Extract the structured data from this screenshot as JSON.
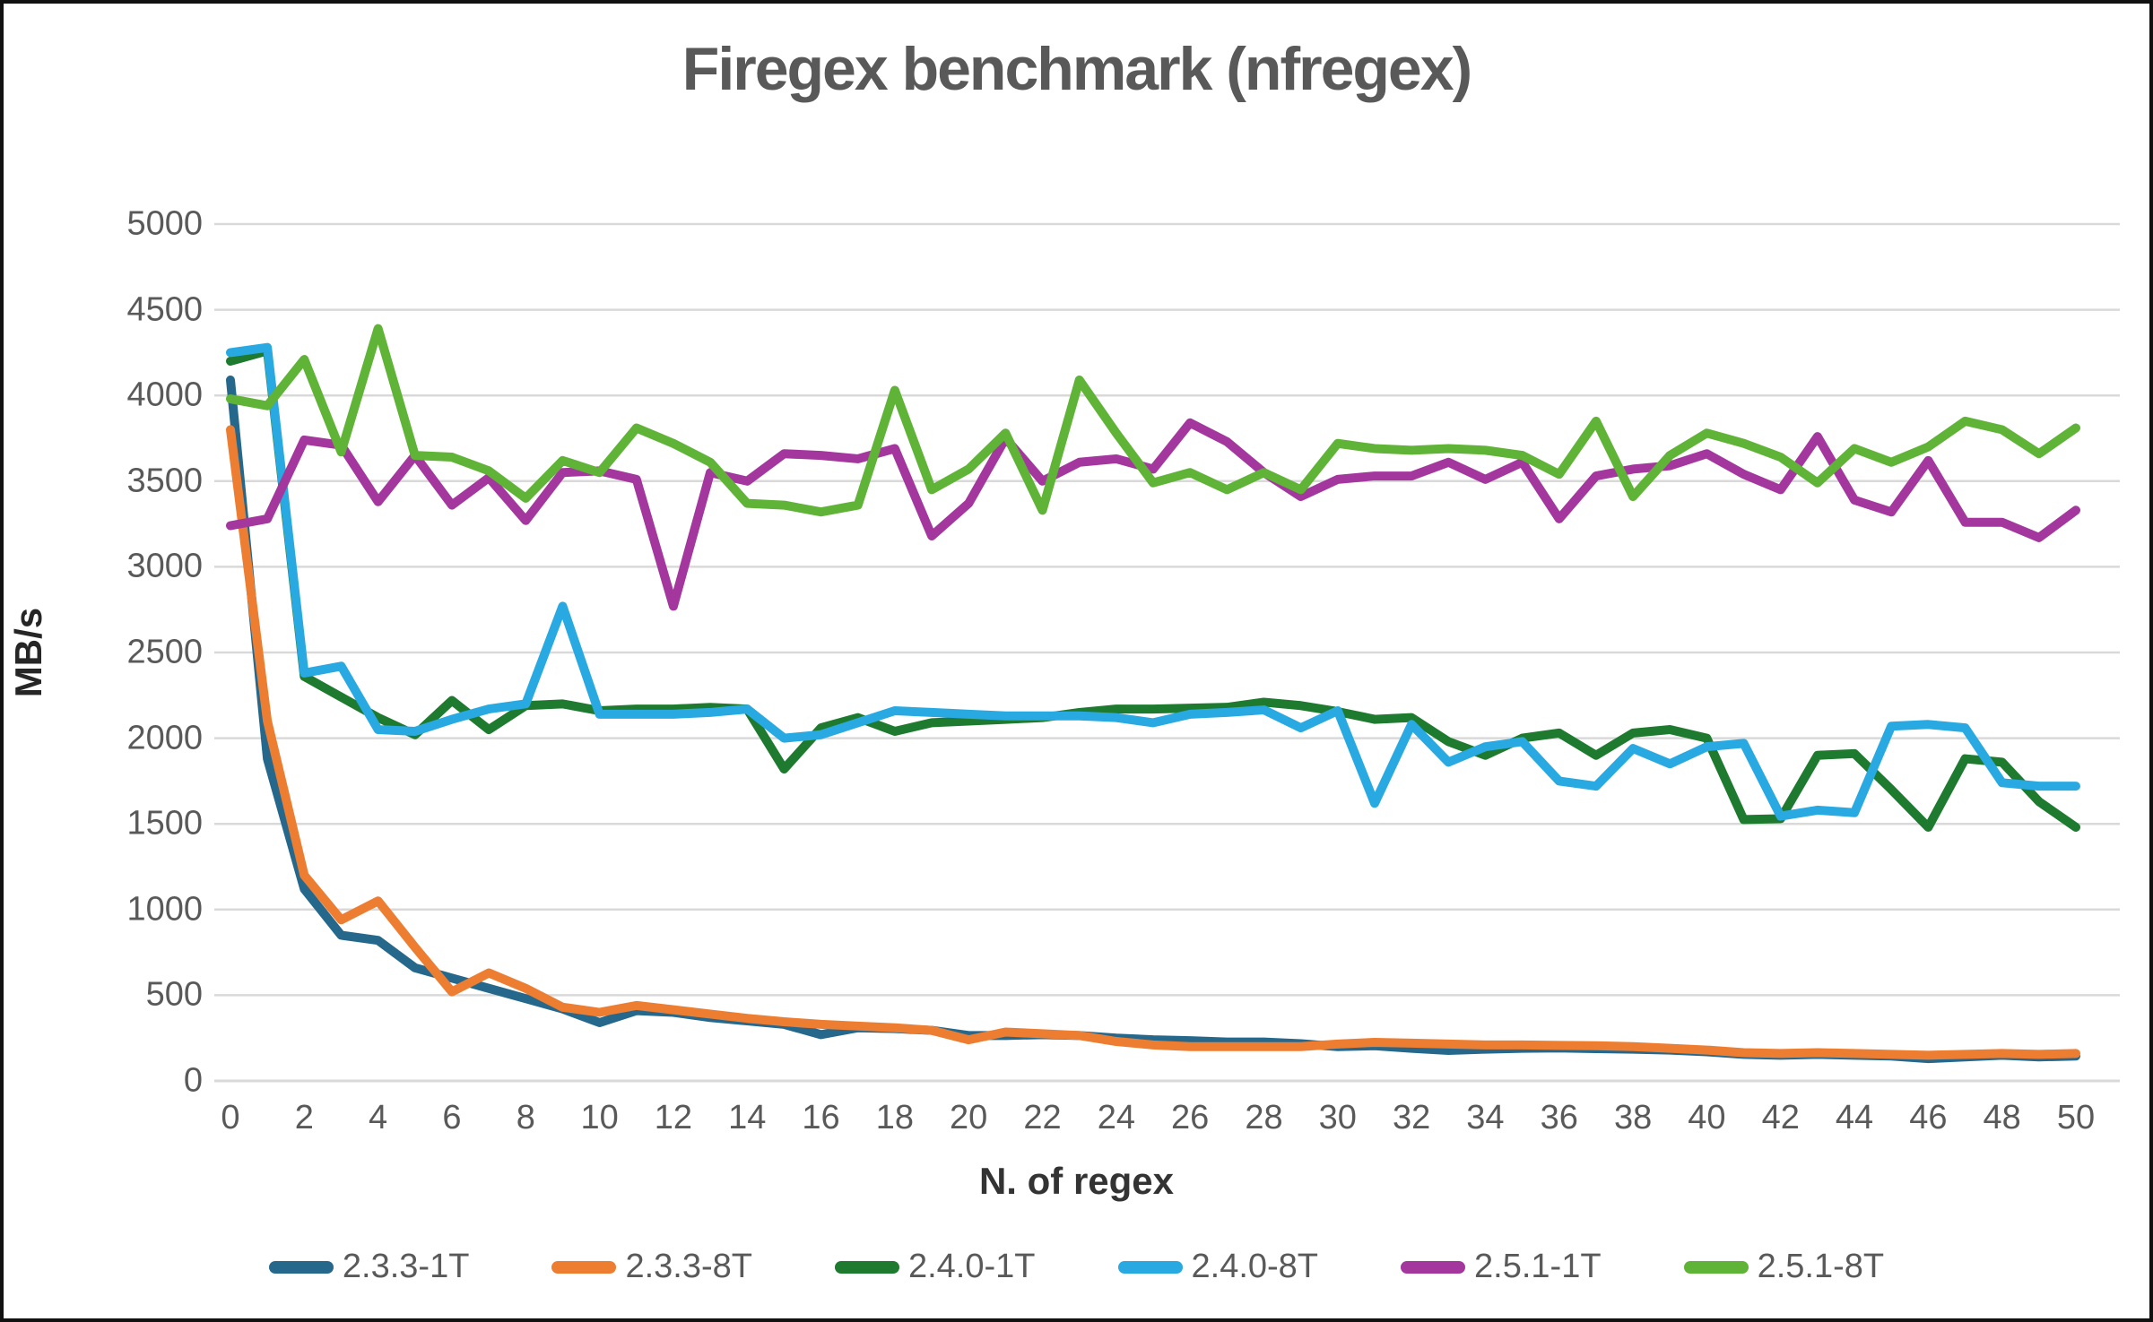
{
  "chart_data": {
    "type": "line",
    "title": "Firegex benchmark (nfregex)",
    "xlabel": "N. of regex",
    "ylabel": "MB/s",
    "ylim": [
      0,
      5000
    ],
    "y_ticks": [
      0,
      500,
      1000,
      1500,
      2000,
      2500,
      3000,
      3500,
      4000,
      4500,
      5000
    ],
    "x_ticks": [
      0,
      2,
      4,
      6,
      8,
      10,
      12,
      14,
      16,
      18,
      20,
      22,
      24,
      26,
      28,
      30,
      32,
      34,
      36,
      38,
      40,
      42,
      44,
      46,
      48,
      50
    ],
    "x_min": 0,
    "x_max": 50,
    "grid": true,
    "legend_position": "bottom",
    "gridline_color": "#d9d9d9",
    "series": [
      {
        "name": "2.3.3-1T",
        "color": "#26688C",
        "values": [
          4090,
          1880,
          1120,
          850,
          820,
          660,
          600,
          540,
          480,
          420,
          340,
          410,
          400,
          370,
          350,
          330,
          270,
          310,
          305,
          295,
          265,
          265,
          270,
          265,
          250,
          240,
          235,
          227,
          227,
          217,
          200,
          205,
          190,
          178,
          185,
          190,
          192,
          188,
          185,
          180,
          170,
          155,
          150,
          155,
          150,
          145,
          130,
          140,
          150,
          140,
          145
        ]
      },
      {
        "name": "2.3.3-8T",
        "color": "#ED7D31",
        "values": [
          3800,
          2100,
          1200,
          940,
          1050,
          780,
          520,
          630,
          540,
          430,
          400,
          440,
          415,
          390,
          365,
          345,
          330,
          320,
          310,
          295,
          240,
          285,
          275,
          265,
          230,
          210,
          200,
          200,
          200,
          200,
          215,
          225,
          220,
          215,
          210,
          210,
          207,
          205,
          200,
          190,
          180,
          165,
          160,
          165,
          160,
          155,
          150,
          155,
          160,
          155,
          160
        ]
      },
      {
        "name": "2.4.0-1T",
        "color": "#1E7A2E",
        "values": [
          4200,
          4260,
          2360,
          2240,
          2120,
          2020,
          2220,
          2050,
          2190,
          2200,
          2160,
          2170,
          2170,
          2180,
          2170,
          1820,
          2060,
          2120,
          2040,
          2090,
          2100,
          2110,
          2120,
          2150,
          2170,
          2170,
          2175,
          2180,
          2210,
          2190,
          2155,
          2110,
          2120,
          1980,
          1900,
          2000,
          2030,
          1900,
          2030,
          2050,
          2000,
          1525,
          1530,
          1900,
          1910,
          1700,
          1480,
          1880,
          1860,
          1630,
          1480
        ]
      },
      {
        "name": "2.4.0-8T",
        "color": "#29A9E1",
        "values": [
          4250,
          4280,
          2380,
          2420,
          2050,
          2040,
          2110,
          2170,
          2200,
          2770,
          2140,
          2140,
          2140,
          2150,
          2170,
          2000,
          2020,
          2090,
          2160,
          2150,
          2140,
          2130,
          2130,
          2130,
          2120,
          2090,
          2140,
          2150,
          2165,
          2060,
          2160,
          1620,
          2080,
          1860,
          1950,
          1980,
          1750,
          1720,
          1940,
          1850,
          1950,
          1970,
          1545,
          1580,
          1565,
          2070,
          2080,
          2060,
          1740,
          1720,
          1720
        ]
      },
      {
        "name": "2.5.1-1T",
        "color": "#A3379E",
        "values": [
          3240,
          3280,
          3740,
          3710,
          3380,
          3650,
          3360,
          3520,
          3270,
          3550,
          3560,
          3510,
          2770,
          3550,
          3500,
          3660,
          3650,
          3630,
          3690,
          3180,
          3370,
          3750,
          3500,
          3610,
          3630,
          3570,
          3840,
          3730,
          3550,
          3410,
          3510,
          3530,
          3530,
          3610,
          3510,
          3610,
          3280,
          3530,
          3570,
          3590,
          3660,
          3540,
          3450,
          3760,
          3390,
          3320,
          3620,
          3260,
          3260,
          3170,
          3330
        ]
      },
      {
        "name": "2.5.1-8T",
        "color": "#5FB336",
        "values": [
          3980,
          3940,
          4210,
          3670,
          4390,
          3650,
          3640,
          3560,
          3400,
          3620,
          3550,
          3810,
          3720,
          3610,
          3370,
          3360,
          3320,
          3360,
          4030,
          3450,
          3570,
          3780,
          3330,
          4090,
          3780,
          3490,
          3550,
          3450,
          3550,
          3450,
          3720,
          3690,
          3680,
          3690,
          3680,
          3650,
          3540,
          3850,
          3410,
          3650,
          3780,
          3720,
          3640,
          3490,
          3690,
          3610,
          3700,
          3850,
          3800,
          3660,
          3810
        ]
      }
    ]
  }
}
